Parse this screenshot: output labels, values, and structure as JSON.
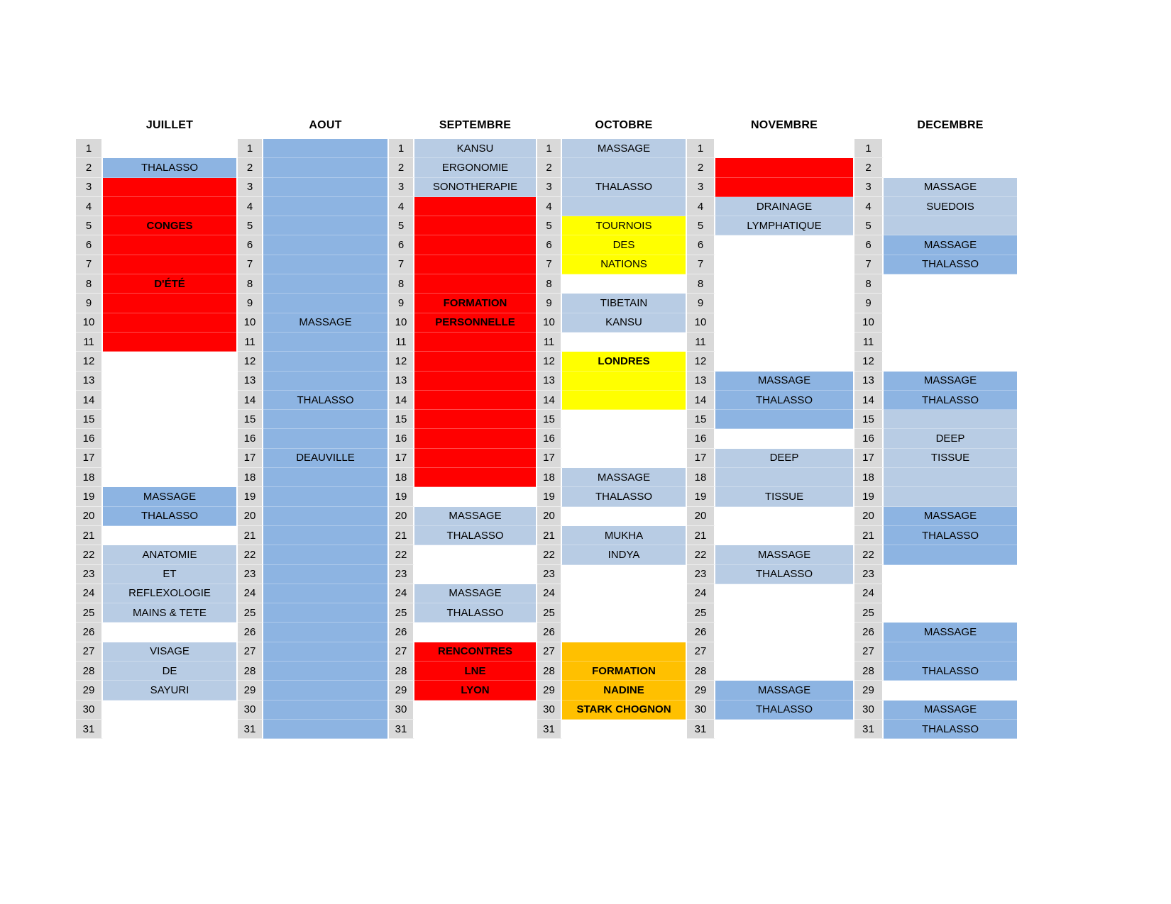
{
  "calendar": {
    "row_count": 31,
    "colors": {
      "red": "#FF0000",
      "yellow": "#FFFF00",
      "orange": "#FFC000",
      "blue_medium": "#8DB4E2",
      "blue_light": "#B8CCE4",
      "day_bg": "#D9D9D9"
    },
    "months": [
      {
        "name": "JUILLET",
        "events": [
          {
            "days": [
              2,
              2
            ],
            "color": "blue_medium",
            "bold": false,
            "labels": {
              "2": "THALASSO"
            }
          },
          {
            "days": [
              3,
              11
            ],
            "color": "red",
            "bold": true,
            "labels": {
              "5": "CONGES",
              "8": "D'ÉTÉ"
            }
          },
          {
            "days": [
              19,
              20
            ],
            "color": "blue_medium",
            "bold": false,
            "labels": {
              "19": "MASSAGE",
              "20": "THALASSO"
            }
          },
          {
            "days": [
              22,
              25
            ],
            "color": "blue_light",
            "bold": false,
            "labels": {
              "22": "ANATOMIE",
              "23": "ET",
              "24": "REFLEXOLOGIE",
              "25": "MAINS & TETE"
            }
          },
          {
            "days": [
              27,
              29
            ],
            "color": "blue_light",
            "bold": false,
            "labels": {
              "27": "VISAGE",
              "28": "DE",
              "29": "SAYURI"
            }
          }
        ]
      },
      {
        "name": "AOUT",
        "events": [
          {
            "days": [
              1,
              31
            ],
            "color": "blue_medium",
            "bold": false,
            "labels": {
              "10": "MASSAGE",
              "14": "THALASSO",
              "17": "DEAUVILLE"
            }
          }
        ]
      },
      {
        "name": "SEPTEMBRE",
        "events": [
          {
            "days": [
              1,
              3
            ],
            "color": "blue_light",
            "bold": false,
            "labels": {
              "1": "KANSU",
              "2": "ERGONOMIE",
              "3": "SONOTHERAPIE"
            }
          },
          {
            "days": [
              4,
              18
            ],
            "color": "red",
            "bold": true,
            "labels": {
              "9": "FORMATION",
              "10": "PERSONNELLE"
            }
          },
          {
            "days": [
              20,
              21
            ],
            "color": "blue_light",
            "bold": false,
            "labels": {
              "20": "MASSAGE",
              "21": "THALASSO"
            }
          },
          {
            "days": [
              24,
              25
            ],
            "color": "blue_light",
            "bold": false,
            "labels": {
              "24": "MASSAGE",
              "25": "THALASSO"
            }
          },
          {
            "days": [
              27,
              29
            ],
            "color": "red",
            "bold": true,
            "labels": {
              "27": "RENCONTRES",
              "28": "LNE",
              "29": "LYON"
            }
          }
        ]
      },
      {
        "name": "OCTOBRE",
        "events": [
          {
            "days": [
              1,
              4
            ],
            "color": "blue_light",
            "bold": false,
            "labels": {
              "1": "MASSAGE",
              "3": "THALASSO"
            }
          },
          {
            "days": [
              5,
              7
            ],
            "color": "yellow",
            "bold": false,
            "labels": {
              "5": "TOURNOIS",
              "6": "DES",
              "7": "NATIONS"
            }
          },
          {
            "days": [
              9,
              10
            ],
            "color": "blue_light",
            "bold": false,
            "labels": {
              "9": "TIBETAIN",
              "10": "KANSU"
            }
          },
          {
            "days": [
              12,
              14
            ],
            "color": "yellow",
            "bold": true,
            "labels": {
              "12": "LONDRES"
            }
          },
          {
            "days": [
              18,
              19
            ],
            "color": "blue_light",
            "bold": false,
            "labels": {
              "18": "MASSAGE",
              "19": "THALASSO"
            }
          },
          {
            "days": [
              21,
              22
            ],
            "color": "blue_light",
            "bold": false,
            "labels": {
              "21": "MUKHA",
              "22": "INDYA"
            }
          },
          {
            "days": [
              27,
              30
            ],
            "color": "orange",
            "bold": true,
            "labels": {
              "28": "FORMATION",
              "29": "NADINE",
              "30": "STARK CHOGNON"
            }
          }
        ]
      },
      {
        "name": "NOVEMBRE",
        "events": [
          {
            "days": [
              2,
              3
            ],
            "color": "red",
            "bold": false,
            "labels": {}
          },
          {
            "days": [
              4,
              5
            ],
            "color": "blue_light",
            "bold": false,
            "labels": {
              "4": "DRAINAGE",
              "5": "LYMPHATIQUE"
            }
          },
          {
            "days": [
              13,
              15
            ],
            "color": "blue_medium",
            "bold": false,
            "labels": {
              "13": "MASSAGE",
              "14": "THALASSO"
            }
          },
          {
            "days": [
              17,
              19
            ],
            "color": "blue_light",
            "bold": false,
            "labels": {
              "17": "DEEP",
              "19": "TISSUE"
            }
          },
          {
            "days": [
              22,
              23
            ],
            "color": "blue_light",
            "bold": false,
            "labels": {
              "22": "MASSAGE",
              "23": "THALASSO"
            }
          },
          {
            "days": [
              29,
              30
            ],
            "color": "blue_medium",
            "bold": false,
            "labels": {
              "29": "MASSAGE",
              "30": "THALASSO"
            }
          }
        ]
      },
      {
        "name": "DECEMBRE",
        "events": [
          {
            "days": [
              3,
              5
            ],
            "color": "blue_light",
            "bold": false,
            "labels": {
              "3": "MASSAGE",
              "4": "SUEDOIS"
            }
          },
          {
            "days": [
              6,
              7
            ],
            "color": "blue_medium",
            "bold": false,
            "labels": {
              "6": "MASSAGE",
              "7": "THALASSO"
            }
          },
          {
            "days": [
              13,
              14
            ],
            "color": "blue_medium",
            "bold": false,
            "labels": {
              "13": "MASSAGE",
              "14": "THALASSO"
            }
          },
          {
            "days": [
              15,
              19
            ],
            "color": "blue_light",
            "bold": false,
            "labels": {
              "16": "DEEP",
              "17": "TISSUE"
            }
          },
          {
            "days": [
              20,
              22
            ],
            "color": "blue_medium",
            "bold": false,
            "labels": {
              "20": "MASSAGE",
              "21": "THALASSO"
            }
          },
          {
            "days": [
              26,
              28
            ],
            "color": "blue_medium",
            "bold": false,
            "labels": {
              "26": "MASSAGE",
              "28": "THALASSO"
            }
          },
          {
            "days": [
              30,
              31
            ],
            "color": "blue_medium",
            "bold": false,
            "labels": {
              "30": "MASSAGE",
              "31": "THALASSO"
            }
          }
        ]
      }
    ]
  }
}
